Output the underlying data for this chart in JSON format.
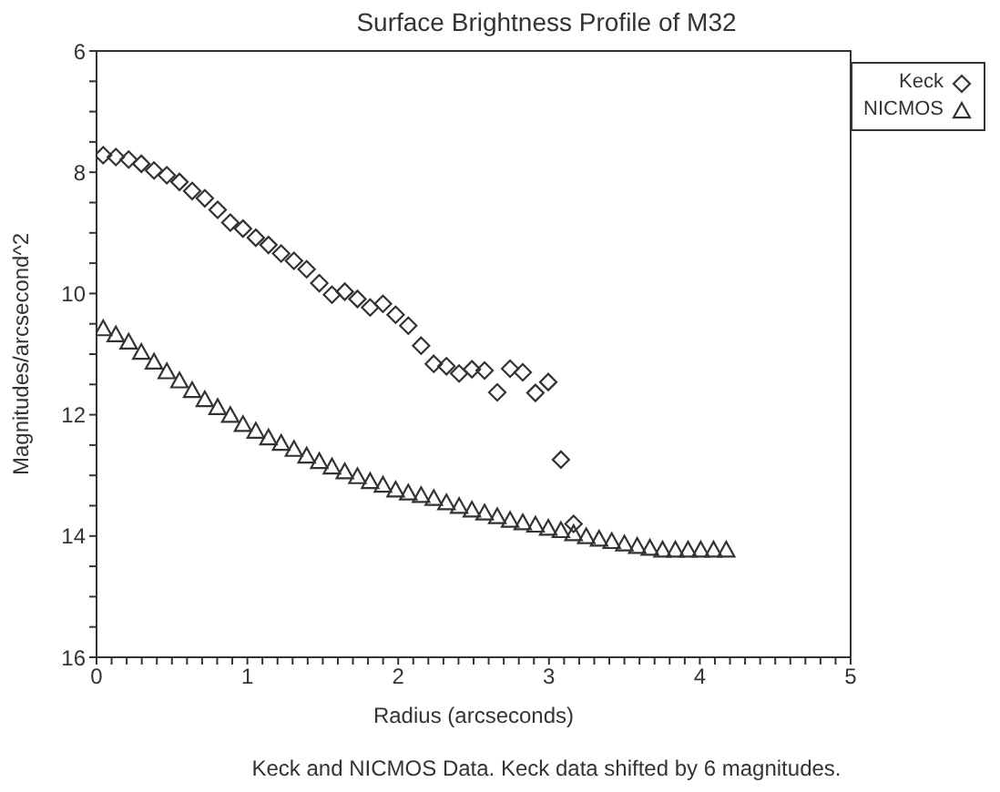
{
  "chart_data": {
    "type": "scatter",
    "title": "Surface Brightness Profile of M32",
    "xlabel": "Radius (arcseconds)",
    "ylabel": "Magnitudes/arcsecond^2",
    "annotations": [
      "Keck and NICMOS Data. Keck data shifted by 6 magnitudes."
    ],
    "xlim": [
      0,
      5
    ],
    "ylim": [
      16,
      6
    ],
    "xticks": [
      0,
      {
        "value": 0.1,
        "label": null
      },
      {
        "value": 0.2,
        "label": null
      },
      {
        "value": 0.3,
        "label": null
      },
      {
        "value": 0.4,
        "label": null
      },
      {
        "value": 0.5,
        "label": null
      },
      {
        "value": 0.6,
        "label": null
      },
      {
        "value": 0.7,
        "label": null
      },
      {
        "value": 0.8,
        "label": null
      },
      {
        "value": 0.9,
        "label": null
      },
      1,
      {
        "value": 1.1,
        "label": null
      },
      {
        "value": 1.2,
        "label": null
      },
      {
        "value": 1.3,
        "label": null
      },
      {
        "value": 1.4,
        "label": null
      },
      {
        "value": 1.5,
        "label": null
      },
      {
        "value": 1.6,
        "label": null
      },
      {
        "value": 1.7,
        "label": null
      },
      {
        "value": 1.8,
        "label": null
      },
      {
        "value": 1.9,
        "label": null
      },
      2,
      {
        "value": 2.1,
        "label": null
      },
      {
        "value": 2.2,
        "label": null
      },
      {
        "value": 2.3,
        "label": null
      },
      {
        "value": 2.4,
        "label": null
      },
      {
        "value": 2.5,
        "label": null
      },
      {
        "value": 2.6,
        "label": null
      },
      {
        "value": 2.7,
        "label": null
      },
      {
        "value": 2.8,
        "label": null
      },
      {
        "value": 2.9,
        "label": null
      },
      3,
      {
        "value": 3.1,
        "label": null
      },
      {
        "value": 3.2,
        "label": null
      },
      {
        "value": 3.3,
        "label": null
      },
      {
        "value": 3.4,
        "label": null
      },
      {
        "value": 3.5,
        "label": null
      },
      {
        "value": 3.6,
        "label": null
      },
      {
        "value": 3.7,
        "label": null
      },
      {
        "value": 3.8,
        "label": null
      },
      {
        "value": 3.9,
        "label": null
      },
      4,
      {
        "value": 4.1,
        "label": null
      },
      {
        "value": 4.2,
        "label": null
      },
      {
        "value": 4.3,
        "label": null
      },
      {
        "value": 4.4,
        "label": null
      },
      {
        "value": 4.5,
        "label": null
      },
      {
        "value": 4.6,
        "label": null
      },
      {
        "value": 4.7,
        "label": null
      },
      {
        "value": 4.8,
        "label": null
      },
      {
        "value": 4.9,
        "label": null
      },
      5
    ],
    "yticks": [
      6,
      {
        "value": 6.5,
        "label": null
      },
      {
        "value": 7,
        "label": null
      },
      {
        "value": 7.5,
        "label": null
      },
      8,
      {
        "value": 8.5,
        "label": null
      },
      {
        "value": 9,
        "label": null
      },
      {
        "value": 9.5,
        "label": null
      },
      10,
      {
        "value": 10.5,
        "label": null
      },
      {
        "value": 11,
        "label": null
      },
      {
        "value": 11.5,
        "label": null
      },
      12,
      {
        "value": 12.5,
        "label": null
      },
      {
        "value": 13,
        "label": null
      },
      {
        "value": 13.5,
        "label": null
      },
      14,
      {
        "value": 14.5,
        "label": null
      },
      {
        "value": 15,
        "label": null
      },
      {
        "value": 15.5,
        "label": null
      },
      16
    ],
    "legend": "top right",
    "grid": false,
    "series": [
      {
        "name": "Keck",
        "color": "#333333",
        "marker": "diamond",
        "x": [
          0.044,
          0.128,
          0.213,
          0.297,
          0.381,
          0.466,
          0.55,
          0.634,
          0.718,
          0.803,
          0.887,
          0.971,
          1.056,
          1.14,
          1.224,
          1.309,
          1.393,
          1.477,
          1.561,
          1.646,
          1.73,
          1.814,
          1.899,
          1.983,
          2.067,
          2.152,
          2.236,
          2.32,
          2.404,
          2.489,
          2.573,
          2.657,
          2.742,
          2.826,
          2.91,
          2.995,
          3.079,
          3.163
        ],
        "values": [
          7.72,
          7.75,
          7.79,
          7.86,
          7.97,
          8.05,
          8.16,
          8.31,
          8.43,
          8.62,
          8.83,
          8.93,
          9.08,
          9.2,
          9.34,
          9.46,
          9.6,
          9.83,
          10.02,
          9.97,
          10.09,
          10.23,
          10.17,
          10.35,
          10.53,
          10.86,
          11.16,
          11.2,
          11.32,
          11.25,
          11.27,
          11.63,
          11.24,
          11.3,
          11.64,
          11.46,
          12.74,
          13.8
        ]
      },
      {
        "name": "NICMOS",
        "color": "#333333",
        "marker": "triangle",
        "x": [
          0.044,
          0.128,
          0.213,
          0.297,
          0.381,
          0.466,
          0.55,
          0.634,
          0.718,
          0.803,
          0.887,
          0.971,
          1.056,
          1.14,
          1.224,
          1.309,
          1.393,
          1.477,
          1.561,
          1.646,
          1.73,
          1.814,
          1.899,
          1.983,
          2.067,
          2.152,
          2.236,
          2.32,
          2.404,
          2.489,
          2.573,
          2.657,
          2.742,
          2.826,
          2.91,
          2.995,
          3.079,
          3.163,
          3.247,
          3.332,
          3.416,
          3.5,
          3.585,
          3.669,
          3.753,
          3.838,
          3.922,
          4.006,
          4.091,
          4.175
        ],
        "values": [
          10.58,
          10.68,
          10.8,
          10.97,
          11.13,
          11.29,
          11.44,
          11.6,
          11.75,
          11.88,
          12.01,
          12.16,
          12.27,
          12.38,
          12.47,
          12.57,
          12.68,
          12.77,
          12.86,
          12.94,
          13.02,
          13.1,
          13.16,
          13.24,
          13.29,
          13.33,
          13.38,
          13.45,
          13.51,
          13.57,
          13.62,
          13.68,
          13.74,
          13.78,
          13.82,
          13.87,
          13.91,
          13.96,
          14.01,
          14.05,
          14.09,
          14.13,
          14.17,
          14.2,
          14.23,
          14.23,
          14.23,
          14.23,
          14.23,
          14.23
        ]
      }
    ]
  }
}
